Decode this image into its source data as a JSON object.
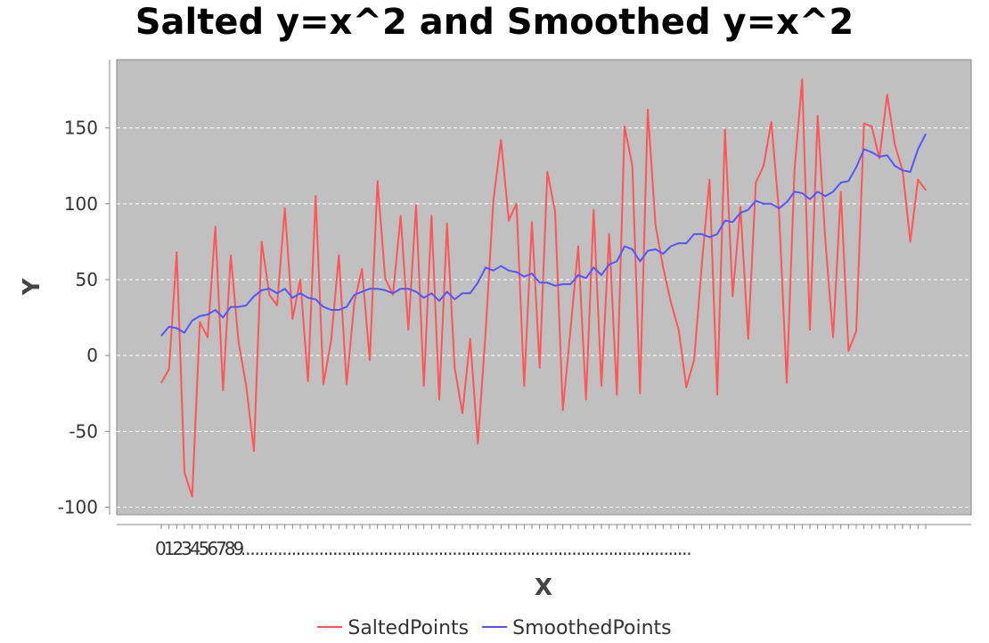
{
  "chart_data": {
    "type": "line",
    "title": "Salted y=x^2 and Smoothed y=x^2",
    "xlabel": "X",
    "ylabel": "Y",
    "ylim": [
      -105,
      195
    ],
    "y_ticks": [
      "-100",
      "-50",
      "0",
      "50",
      "100",
      "150"
    ],
    "y_tick_values": [
      -100,
      -50,
      0,
      50,
      100,
      150
    ],
    "x_tick_labels_visible": [
      "0",
      "1",
      "2",
      "3",
      "4",
      "5",
      "6",
      "7",
      "8",
      "9"
    ],
    "x_tick_overflow_text": "..................................................................................................",
    "plot_background": "#c0c0c0",
    "grid": true,
    "legend_position": "bottom",
    "series": [
      {
        "name": "SaltedPoints",
        "color": "#ff5555",
        "values": [
          -18,
          -9,
          68,
          -77,
          -93,
          22,
          12,
          85,
          -23,
          66,
          9,
          -20,
          -63,
          75,
          40,
          33,
          97,
          24,
          50,
          -17,
          105,
          -19,
          10,
          66,
          -19,
          35,
          57,
          -3,
          115,
          51,
          40,
          92,
          17,
          99,
          -20,
          92,
          -29,
          87,
          -8,
          -38,
          11,
          -58,
          15,
          102,
          142,
          89,
          100,
          -20,
          88,
          -8,
          121,
          95,
          -36,
          17,
          72,
          -29,
          96,
          -20,
          80,
          -26,
          151,
          125,
          -25,
          162,
          86,
          58,
          35,
          17,
          -21,
          -3,
          60,
          116,
          -26,
          149,
          39,
          98,
          11,
          114,
          125,
          154,
          95,
          -18,
          122,
          182,
          17,
          158,
          76,
          12,
          108,
          3,
          16,
          153,
          151,
          130,
          172,
          139,
          122,
          75,
          116,
          109
        ],
        "labels": [
          "-18",
          "-9",
          "68",
          "-77",
          "-93",
          "22",
          "12",
          "85",
          "-23",
          "66",
          "9",
          "-20",
          "-63",
          "75",
          "40",
          "33",
          "97",
          "24",
          "50",
          "-17",
          "105",
          "-19",
          "10",
          "66",
          "-19",
          "35",
          "57",
          "-3",
          "115",
          "51",
          "40",
          "92",
          "17",
          "99",
          "-20",
          "92",
          "-29",
          "87",
          "-8",
          "-38",
          "11",
          "-58",
          "15",
          "102",
          "142",
          "89",
          "100",
          "-20",
          "88",
          "-8",
          "121",
          "95",
          "-36",
          "17",
          "72",
          "-29",
          "96",
          "-20",
          "80",
          "-26",
          "151",
          "125",
          "-25",
          "162",
          "86",
          "58",
          "35",
          "17",
          "-21",
          "-3",
          "60",
          "116",
          "-26",
          "149",
          "39",
          "98",
          "11",
          "114",
          "125",
          "154",
          "95",
          "-18",
          "122",
          "182",
          "17",
          "158",
          "76",
          "12",
          "108",
          "3",
          "16",
          "153",
          "151",
          "130",
          "172",
          "139",
          "122",
          "75",
          "116",
          "109"
        ]
      },
      {
        "name": "SmoothedPoints",
        "color": "#5555ff",
        "values": [
          13,
          19,
          18,
          15,
          23,
          26,
          27,
          30,
          25,
          32,
          32,
          33,
          39,
          43,
          44,
          41,
          44,
          38,
          41,
          38,
          37,
          32,
          30,
          30,
          32,
          40,
          42,
          44,
          44,
          43,
          41,
          44,
          44,
          42,
          38,
          41,
          36,
          42,
          37,
          41,
          41,
          48,
          58,
          56,
          59,
          56,
          55,
          52,
          54,
          48,
          48,
          46,
          47,
          47,
          53,
          51,
          58,
          53,
          60,
          62,
          72,
          70,
          62,
          69,
          70,
          67,
          72,
          74,
          74,
          80,
          80,
          78,
          80,
          89,
          88,
          94,
          96,
          102,
          100,
          100,
          97,
          101,
          108,
          107,
          103,
          108,
          105,
          108,
          114,
          115,
          124,
          136,
          134,
          131,
          132,
          125,
          122,
          121,
          136,
          146
        ],
        "labels": [
          "13",
          "19",
          "18",
          "15",
          "23",
          "26",
          "27",
          "30",
          "25",
          "32",
          "32",
          "33",
          "39",
          "43",
          "44",
          "41",
          "44",
          "38",
          "41",
          "38",
          "37",
          "32",
          "30",
          "30",
          "32",
          "40",
          "42",
          "44",
          "44",
          "43",
          "41",
          "44",
          "44",
          "42",
          "38",
          "41",
          "36",
          "42",
          "37",
          "41",
          "41",
          "48",
          "58",
          "56",
          "59",
          "56",
          "55",
          "52",
          "54",
          "48",
          "48",
          "46",
          "47",
          "47",
          "53",
          "51",
          "58",
          "53",
          "60",
          "62",
          "72",
          "70",
          "62",
          "69",
          "70",
          "67",
          "72",
          "74",
          "74",
          "80",
          "80",
          "78",
          "80",
          "89",
          "88",
          "94",
          "96",
          "102",
          "100",
          "100",
          "97",
          "101",
          "108",
          "107",
          "103",
          "108",
          "105",
          "108",
          "114",
          "115",
          "124",
          "136",
          "134",
          "131",
          "132",
          "125",
          "122",
          "121",
          "136",
          "146"
        ]
      }
    ]
  }
}
